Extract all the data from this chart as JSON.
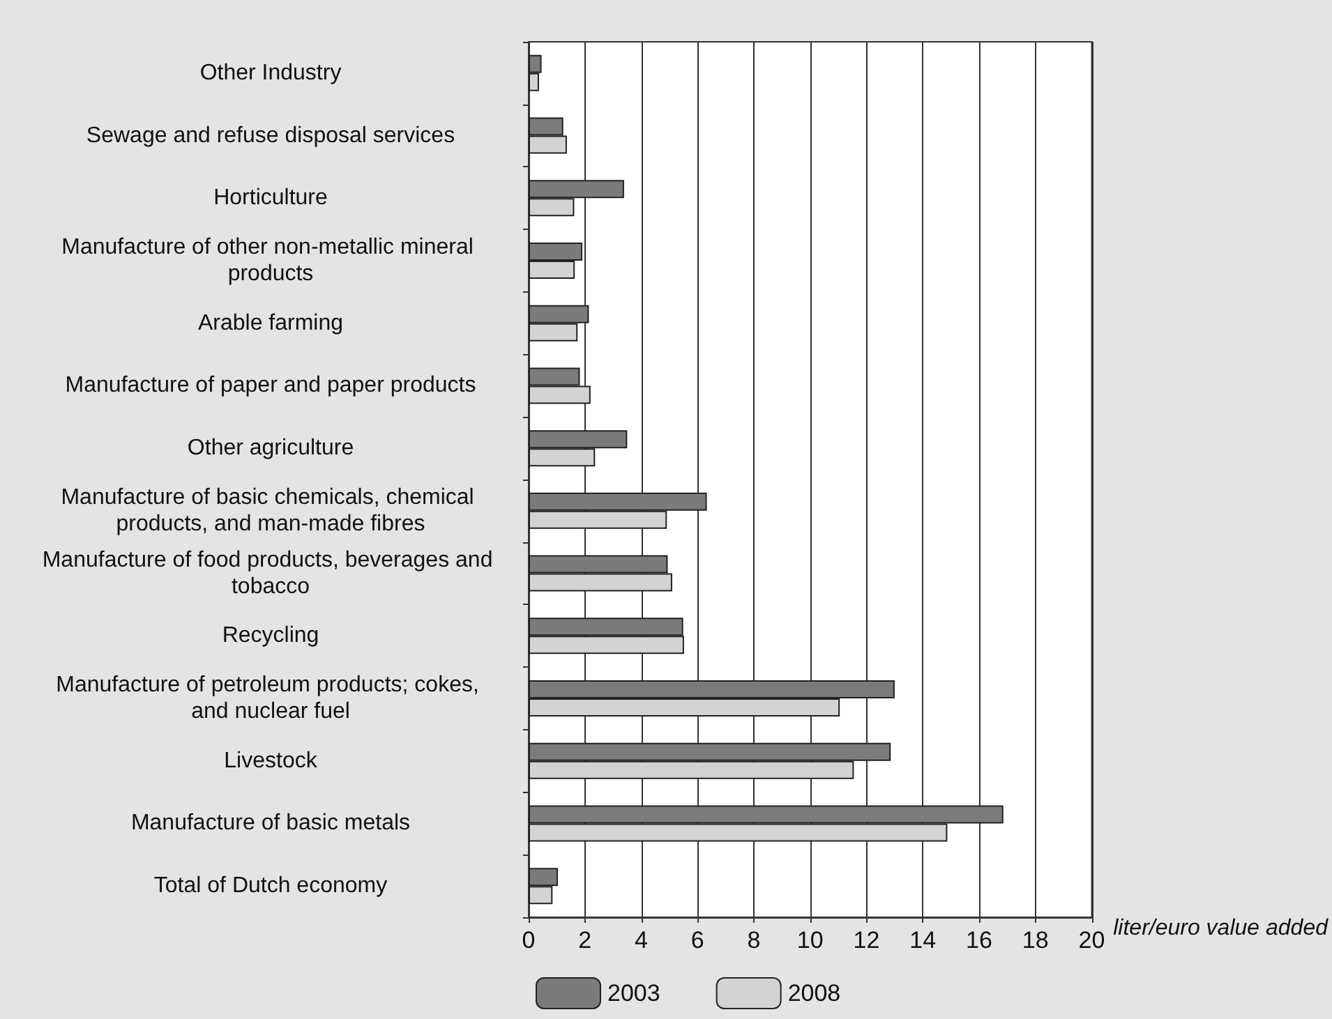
{
  "chart_data": {
    "type": "bar",
    "orientation": "horizontal",
    "xlabel": "liter/euro value added",
    "categories": [
      "Other Industry",
      "Sewage and refuse disposal services",
      "Horticulture",
      "Manufacture of other non-metallic mineral products",
      "Arable farming",
      "Manufacture of paper and paper products",
      "Other agriculture",
      "Manufacture of basic chemicals, chemical products, and man-made fibres",
      "Manufacture of food products, beverages and tobacco",
      "Recycling",
      "Manufacture of petroleum products; cokes, and nuclear fuel",
      "Livestock",
      "Manufacture of basic metals",
      "Total of Dutch economy"
    ],
    "series": [
      {
        "name": "2003",
        "color": "#7a7b7c",
        "values": [
          0.46,
          1.23,
          3.39,
          1.91,
          2.14,
          1.82,
          3.5,
          6.33,
          4.94,
          5.49,
          13.0,
          12.86,
          16.86,
          1.04
        ]
      },
      {
        "name": "2008",
        "color": "#d2d3d4",
        "values": [
          0.37,
          1.36,
          1.62,
          1.64,
          1.74,
          2.2,
          2.36,
          4.91,
          5.1,
          5.52,
          11.05,
          11.55,
          14.87,
          0.85
        ]
      }
    ],
    "xlim": [
      0,
      20
    ],
    "xticks": [
      0,
      2,
      4,
      6,
      8,
      10,
      12,
      14,
      16,
      18,
      20
    ],
    "grid": "x",
    "legend": "bottom left"
  }
}
